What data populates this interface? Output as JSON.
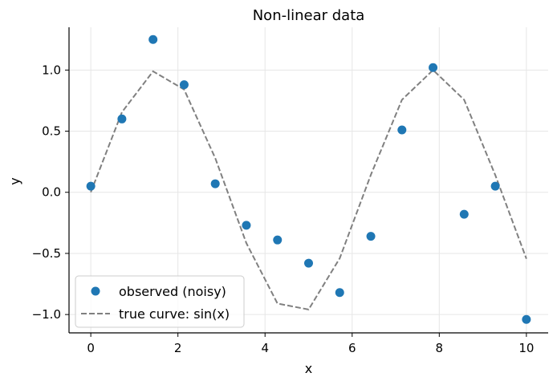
{
  "chart_data": {
    "type": "scatter",
    "title": "Non-linear data",
    "xlabel": "x",
    "ylabel": "y",
    "xlim": [
      -0.5,
      10.5
    ],
    "ylim": [
      -1.15,
      1.35
    ],
    "xticks": [
      0,
      2,
      4,
      6,
      8,
      10
    ],
    "xtick_labels": [
      "0",
      "2",
      "4",
      "6",
      "8",
      "10"
    ],
    "yticks": [
      -1.0,
      -0.5,
      0.0,
      0.5,
      1.0
    ],
    "ytick_labels": [
      "−1.0",
      "−0.5",
      "0.0",
      "0.5",
      "1.0"
    ],
    "grid": true,
    "legend_position": "lower-left",
    "series": [
      {
        "name": "observed (noisy)",
        "kind": "scatter",
        "color": "#1f77b4",
        "x": [
          0,
          0.714,
          1.429,
          2.143,
          2.857,
          3.571,
          4.286,
          5.0,
          5.714,
          6.429,
          7.143,
          7.857,
          8.571,
          9.286,
          10.0
        ],
        "y": [
          0.05,
          0.6,
          1.25,
          0.88,
          0.07,
          -0.27,
          -0.39,
          -0.58,
          -0.82,
          -0.36,
          0.51,
          1.02,
          -0.18,
          0.05,
          -1.04
        ]
      },
      {
        "name": "true curve: sin(x)",
        "kind": "line",
        "style": "dashed",
        "color": "#808080",
        "x": [
          0,
          0.714,
          1.429,
          2.143,
          2.857,
          3.571,
          4.286,
          5.0,
          5.714,
          6.429,
          7.143,
          7.857,
          8.571,
          9.286,
          10.0
        ],
        "y": [
          0.0,
          0.655,
          0.99,
          0.841,
          0.279,
          -0.415,
          -0.91,
          -0.959,
          -0.54,
          0.143,
          0.757,
          1.0,
          0.757,
          0.141,
          -0.544
        ]
      }
    ],
    "legend_labels": [
      "observed (noisy)",
      "true curve: sin(x)"
    ]
  }
}
